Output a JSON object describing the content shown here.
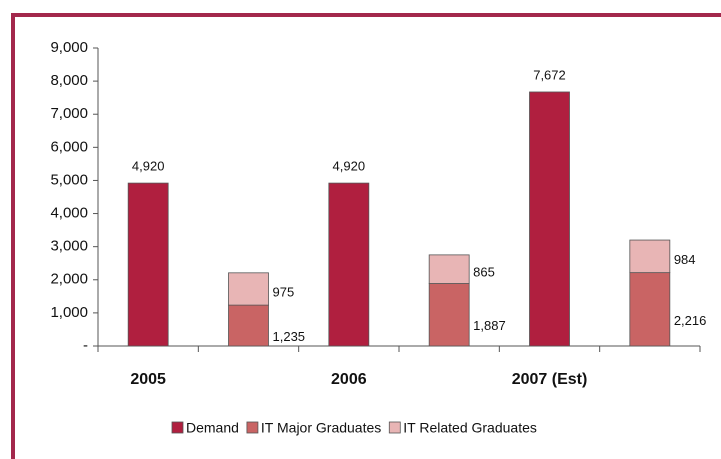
{
  "chart_data": {
    "type": "bar",
    "categories": [
      "2005",
      "2006",
      "2007 (Est)"
    ],
    "series": [
      {
        "name": "Demand",
        "color": "#b01f3f",
        "values": [
          4920,
          4920,
          7672
        ],
        "value_labels": [
          "4,920",
          "4,920",
          "7,672"
        ]
      },
      {
        "name": "IT Major Graduates",
        "color": "#c96464",
        "values": [
          1235,
          1887,
          2216
        ],
        "value_labels": [
          "1,235",
          "1,887",
          "2,216"
        ]
      },
      {
        "name": "IT Related Graduates",
        "color": "#e8b5b5",
        "values": [
          975,
          865,
          984
        ]
      }
    ],
    "ylim": [
      0,
      9000
    ],
    "yticks": [
      {
        "value": 0,
        "label": "-"
      },
      {
        "value": 1000,
        "label": "1,000"
      },
      {
        "value": 2000,
        "label": "2,000"
      },
      {
        "value": 3000,
        "label": "3,000"
      },
      {
        "value": 4000,
        "label": "4,000"
      },
      {
        "value": 5000,
        "label": "5,000"
      },
      {
        "value": 6000,
        "label": "6,000"
      },
      {
        "value": 7000,
        "label": "7,000"
      },
      {
        "value": 8000,
        "label": "8,000"
      },
      {
        "value": 9000,
        "label": "9,000"
      }
    ],
    "legend": "bottom"
  }
}
